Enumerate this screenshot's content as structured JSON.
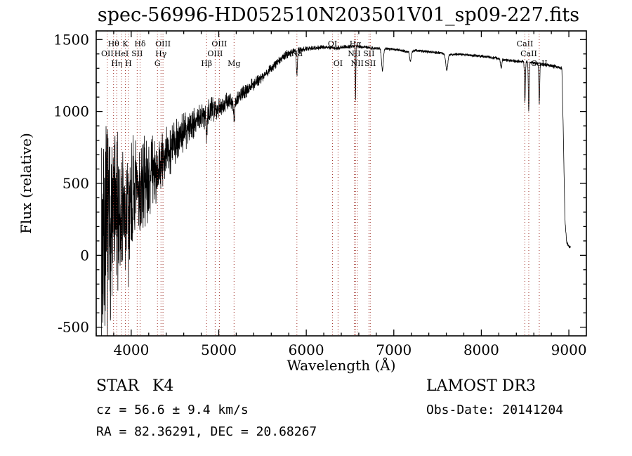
{
  "annotations": {
    "class_label": "STAR",
    "subclass_label": "K4",
    "cz_line": "cz = 56.6 ± 9.4 km/s",
    "radec_line": "RA =  82.36291, DEC =  20.68267",
    "survey": "LAMOST DR3",
    "obsdate_line": "Obs-Date: 20141204"
  },
  "chart_data": {
    "type": "line",
    "title": "spec-56996-HD052510N203501V01_sp09-227.fits",
    "xlabel": "Wavelength (Å)",
    "ylabel": "Flux (relative)",
    "xlim": [
      3600,
      9200
    ],
    "ylim": [
      -560,
      1560
    ],
    "x_ticks": [
      4000,
      5000,
      6000,
      7000,
      8000,
      9000
    ],
    "y_ticks": [
      -500,
      0,
      500,
      1000,
      1500
    ],
    "x_minor_step": 200,
    "y_minor_step": 100,
    "legend": "none",
    "grid": false,
    "colors": {
      "spectrum": "#000000",
      "spectral_lines": "#a03028",
      "frame": "#000000",
      "background": "#ffffff"
    },
    "noise_seed": 7,
    "sampling": {
      "start": 3660,
      "end": 9020,
      "step": 1.5
    },
    "continuum": [
      [
        3660,
        120
      ],
      [
        3700,
        170
      ],
      [
        3750,
        210
      ],
      [
        3800,
        260
      ],
      [
        3850,
        285
      ],
      [
        3900,
        305
      ],
      [
        3950,
        330
      ],
      [
        4000,
        380
      ],
      [
        4050,
        425
      ],
      [
        4100,
        465
      ],
      [
        4150,
        505
      ],
      [
        4200,
        545
      ],
      [
        4250,
        580
      ],
      [
        4300,
        605
      ],
      [
        4350,
        645
      ],
      [
        4400,
        700
      ],
      [
        4500,
        790
      ],
      [
        4600,
        860
      ],
      [
        4700,
        920
      ],
      [
        4800,
        960
      ],
      [
        4900,
        1010
      ],
      [
        5000,
        1030
      ],
      [
        5100,
        1070
      ],
      [
        5175,
        1065
      ],
      [
        5250,
        1110
      ],
      [
        5350,
        1170
      ],
      [
        5450,
        1220
      ],
      [
        5550,
        1270
      ],
      [
        5650,
        1330
      ],
      [
        5750,
        1385
      ],
      [
        5850,
        1420
      ],
      [
        5950,
        1430
      ],
      [
        6050,
        1440
      ],
      [
        6150,
        1445
      ],
      [
        6250,
        1445
      ],
      [
        6350,
        1440
      ],
      [
        6450,
        1450
      ],
      [
        6550,
        1455
      ],
      [
        6650,
        1450
      ],
      [
        6750,
        1440
      ],
      [
        6950,
        1435
      ],
      [
        7050,
        1430
      ],
      [
        7150,
        1415
      ],
      [
        7250,
        1425
      ],
      [
        7350,
        1418
      ],
      [
        7450,
        1412
      ],
      [
        7550,
        1405
      ],
      [
        7650,
        1395
      ],
      [
        7750,
        1398
      ],
      [
        7850,
        1392
      ],
      [
        7950,
        1388
      ],
      [
        8050,
        1382
      ],
      [
        8150,
        1372
      ],
      [
        8250,
        1360
      ],
      [
        8350,
        1352
      ],
      [
        8450,
        1348
      ],
      [
        8550,
        1342
      ],
      [
        8650,
        1332
      ],
      [
        8750,
        1322
      ],
      [
        8850,
        1312
      ],
      [
        8920,
        1300
      ],
      [
        8935,
        900
      ],
      [
        8955,
        250
      ],
      [
        8975,
        90
      ],
      [
        9000,
        62
      ],
      [
        9020,
        55
      ]
    ],
    "noise_amplitude": [
      [
        3660,
        660
      ],
      [
        3720,
        640
      ],
      [
        3780,
        560
      ],
      [
        3840,
        470
      ],
      [
        3900,
        430
      ],
      [
        3960,
        390
      ],
      [
        4020,
        330
      ],
      [
        4100,
        270
      ],
      [
        4200,
        225
      ],
      [
        4300,
        195
      ],
      [
        4400,
        155
      ],
      [
        4600,
        112
      ],
      [
        4800,
        88
      ],
      [
        5000,
        62
      ],
      [
        5200,
        46
      ],
      [
        5400,
        36
      ],
      [
        5600,
        29
      ],
      [
        5800,
        24
      ],
      [
        6000,
        15
      ],
      [
        6300,
        12
      ],
      [
        6600,
        10
      ],
      [
        7000,
        8
      ],
      [
        7500,
        8
      ],
      [
        8000,
        9
      ],
      [
        8500,
        10
      ],
      [
        8900,
        11
      ],
      [
        9020,
        10
      ]
    ],
    "absorption_features": [
      [
        3933,
        260,
        4
      ],
      [
        3968,
        250,
        4
      ],
      [
        4101,
        140,
        4
      ],
      [
        4300,
        140,
        8
      ],
      [
        4861,
        150,
        5
      ],
      [
        5175,
        110,
        9
      ],
      [
        5893,
        170,
        6
      ],
      [
        6563,
        380,
        3
      ],
      [
        6870,
        150,
        10
      ],
      [
        7190,
        70,
        9
      ],
      [
        7605,
        110,
        12
      ],
      [
        8227,
        60,
        7
      ],
      [
        8498,
        280,
        5
      ],
      [
        8542,
        340,
        5
      ],
      [
        8662,
        270,
        5
      ]
    ],
    "spectral_lines": [
      {
        "label": "OII",
        "wavelength": 3727,
        "row": 2
      },
      {
        "label": "Hθ",
        "wavelength": 3798,
        "row": 1
      },
      {
        "label": "Hη",
        "wavelength": 3835,
        "row": 3
      },
      {
        "label": "HeI",
        "wavelength": 3889,
        "row": 2
      },
      {
        "label": "K",
        "wavelength": 3933,
        "row": 1
      },
      {
        "label": "H",
        "wavelength": 3968,
        "row": 3
      },
      {
        "label": "SII",
        "wavelength": 4068,
        "row": 2
      },
      {
        "label": "Hδ",
        "wavelength": 4101,
        "row": 1
      },
      {
        "label": "G",
        "wavelength": 4300,
        "row": 3
      },
      {
        "label": "Hγ",
        "wavelength": 4340,
        "row": 2
      },
      {
        "label": "OIII",
        "wavelength": 4363,
        "row": 1
      },
      {
        "label": "Hβ",
        "wavelength": 4861,
        "row": 3
      },
      {
        "label": "OIII",
        "wavelength": 4959,
        "row": 2
      },
      {
        "label": "OIII",
        "wavelength": 5007,
        "row": 1
      },
      {
        "label": "Mg",
        "wavelength": 5175,
        "row": 3
      },
      {
        "label": "Na",
        "wavelength": 5893,
        "row": 2
      },
      {
        "label": "OI",
        "wavelength": 6300,
        "row": 1
      },
      {
        "label": "OI",
        "wavelength": 6363,
        "row": 3
      },
      {
        "label": "NII",
        "wavelength": 6548,
        "row": 2
      },
      {
        "label": "Hα",
        "wavelength": 6563,
        "row": 1
      },
      {
        "label": "NII",
        "wavelength": 6583,
        "row": 3
      },
      {
        "label": "SII",
        "wavelength": 6716,
        "row": 2
      },
      {
        "label": "SII",
        "wavelength": 6731,
        "row": 3
      },
      {
        "label": "CaII",
        "wavelength": 8498,
        "row": 1
      },
      {
        "label": "CaII",
        "wavelength": 8542,
        "row": 2
      },
      {
        "label": "CaII",
        "wavelength": 8662,
        "row": 3
      }
    ]
  }
}
